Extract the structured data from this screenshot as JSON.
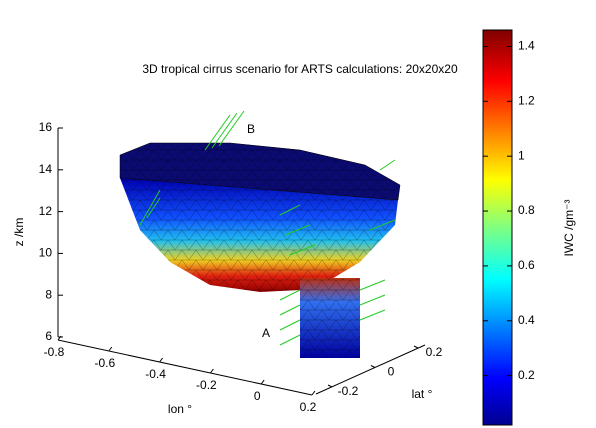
{
  "chart_data": {
    "type": "surface3d",
    "title": "3D tropical cirrus scenario for ARTS calculations: 20x20x20",
    "xlabel": "lon °",
    "ylabel": "lat °",
    "zlabel": "z /km",
    "xlim": [
      -0.8,
      0.2
    ],
    "xticks": [
      -0.8,
      -0.6,
      -0.4,
      -0.2,
      0,
      0.2
    ],
    "ylim": [
      -0.2,
      0.2
    ],
    "yticks": [
      -0.2,
      0,
      0.2
    ],
    "zlim": [
      6,
      16
    ],
    "zticks": [
      6,
      8,
      10,
      12,
      14,
      16
    ],
    "colorbar": {
      "label": "IWC /gm⁻³",
      "clim": [
        0.02,
        1.46
      ],
      "ticks": [
        0.2,
        0.4,
        0.6,
        0.8,
        1,
        1.2,
        1.4
      ],
      "colormap": "jet"
    },
    "annotations": [
      "A",
      "B"
    ]
  }
}
